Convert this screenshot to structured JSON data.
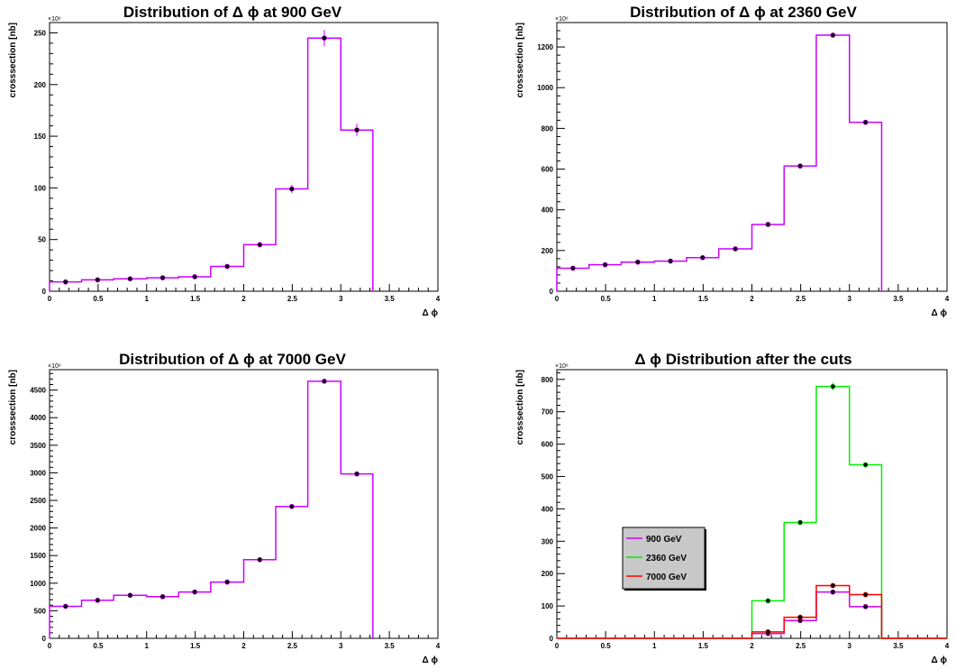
{
  "chart_data": [
    {
      "type": "histogram",
      "title": "Distribution of Δ ϕ at 900 GeV",
      "xlabel": "Δ ϕ",
      "ylabel": "crosssection [nb]",
      "y_multiplier": "×10⁶",
      "xlim": [
        0,
        4
      ],
      "ylim": [
        0,
        260
      ],
      "xticks": [
        0,
        0.5,
        1,
        1.5,
        2,
        2.5,
        3,
        3.5,
        4
      ],
      "yticks": [
        0,
        50,
        100,
        150,
        200,
        250
      ],
      "bin_edges": [
        0,
        0.33,
        0.66,
        1.0,
        1.33,
        1.66,
        2.0,
        2.33,
        2.66,
        3.0,
        3.33
      ],
      "series": [
        {
          "color": "#cc00ff",
          "values": [
            9,
            11,
            12,
            13,
            14,
            24,
            45,
            99,
            245,
            156
          ],
          "errors": [
            0.5,
            0.5,
            0.5,
            0.5,
            0.5,
            1,
            1.5,
            4,
            8,
            6
          ]
        }
      ]
    },
    {
      "type": "histogram",
      "title": "Distribution of Δ ϕ at 2360 GeV",
      "xlabel": "Δ ϕ",
      "ylabel": "crosssection [nb]",
      "y_multiplier": "×10⁶",
      "xlim": [
        0,
        4
      ],
      "ylim": [
        0,
        1320
      ],
      "xticks": [
        0,
        0.5,
        1,
        1.5,
        2,
        2.5,
        3,
        3.5,
        4
      ],
      "yticks": [
        0,
        200,
        400,
        600,
        800,
        1000,
        1200
      ],
      "bin_edges": [
        0,
        0.33,
        0.66,
        1.0,
        1.33,
        1.66,
        2.0,
        2.33,
        2.66,
        3.0,
        3.33
      ],
      "series": [
        {
          "color": "#cc00ff",
          "values": [
            113,
            130,
            143,
            148,
            165,
            208,
            328,
            615,
            1258,
            830
          ],
          "errors": [
            2,
            2,
            2,
            2,
            2,
            3,
            4,
            6,
            12,
            8
          ]
        }
      ]
    },
    {
      "type": "histogram",
      "title": "Distribution of Δ ϕ at 7000 GeV",
      "xlabel": "Δ ϕ",
      "ylabel": "crosssection [nb]",
      "y_multiplier": "×10⁶",
      "xlim": [
        0,
        4
      ],
      "ylim": [
        0,
        4870
      ],
      "xticks": [
        0,
        0.5,
        1,
        1.5,
        2,
        2.5,
        3,
        3.5,
        4
      ],
      "yticks": [
        0,
        500,
        1000,
        1500,
        2000,
        2500,
        3000,
        3500,
        4000,
        4500
      ],
      "bin_edges": [
        0,
        0.33,
        0.66,
        1.0,
        1.33,
        1.66,
        2.0,
        2.33,
        2.66,
        3.0,
        3.33
      ],
      "series": [
        {
          "color": "#cc00ff",
          "values": [
            580,
            690,
            780,
            755,
            840,
            1020,
            1425,
            2390,
            4660,
            2980
          ],
          "errors": [
            10,
            10,
            10,
            10,
            10,
            15,
            15,
            20,
            30,
            25
          ]
        }
      ]
    },
    {
      "type": "histogram",
      "title": "Δ ϕ Distribution after the cuts",
      "xlabel": "Δ ϕ",
      "ylabel": "crosssection [nb]",
      "y_multiplier": "×10⁶",
      "xlim": [
        0,
        4
      ],
      "ylim": [
        0,
        830
      ],
      "xticks": [
        0,
        0.5,
        1,
        1.5,
        2,
        2.5,
        3,
        3.5,
        4
      ],
      "yticks": [
        0,
        100,
        200,
        300,
        400,
        500,
        600,
        700,
        800
      ],
      "bin_edges": [
        0,
        0.33,
        0.66,
        1.0,
        1.33,
        1.66,
        2.0,
        2.33,
        2.66,
        3.0,
        3.33,
        3.66,
        4.0
      ],
      "legend_position": "left-middle",
      "series": [
        {
          "name": "900 GeV",
          "color": "#cc00ff",
          "values": [
            0,
            0,
            0,
            0,
            0,
            0,
            15,
            55,
            143,
            98,
            0,
            0
          ],
          "errors": [
            0,
            0,
            0,
            0,
            0,
            0,
            2,
            3,
            5,
            4,
            0,
            0
          ]
        },
        {
          "name": "2360 GeV",
          "color": "#00ee00",
          "values": [
            0,
            0,
            0,
            0,
            0,
            0,
            116,
            358,
            778,
            536,
            0,
            0
          ],
          "errors": [
            0,
            0,
            0,
            0,
            0,
            0,
            3,
            5,
            12,
            8,
            0,
            0
          ]
        },
        {
          "name": "7000 GeV",
          "color": "#ff0000",
          "values": [
            0,
            0,
            0,
            0,
            0,
            0,
            20,
            65,
            163,
            135,
            0,
            0
          ],
          "errors": [
            0,
            0,
            0,
            0,
            0,
            0,
            2,
            3,
            5,
            4,
            0,
            0
          ]
        }
      ]
    }
  ]
}
